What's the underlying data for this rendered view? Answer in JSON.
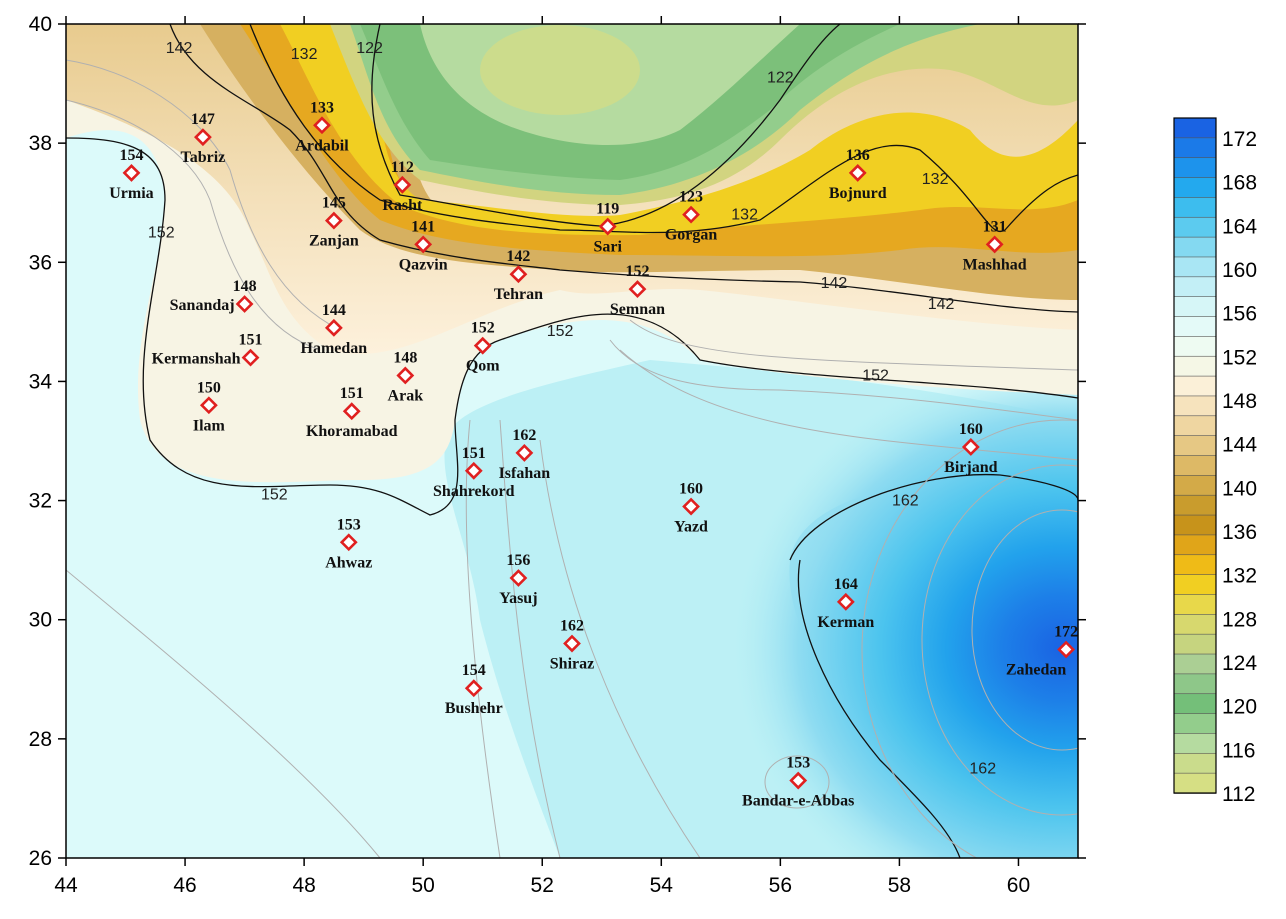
{
  "colors": {
    "bg_low": "#dcfafa",
    "cyan": "#b4eef4",
    "blue_mid": "#5ac8ec",
    "blue_deep": "#1f6fe6",
    "cream": "#fdf1dc",
    "tan": "#e8cb8e",
    "brown": "#c89a2c",
    "orange": "#e6a41a",
    "yellow": "#f0cc24",
    "olive": "#d2d480",
    "green_light": "#b6dca0",
    "green": "#7cc07a",
    "marker": "#e02020"
  },
  "x_axis": {
    "min": 44,
    "max": 61,
    "ticks": [
      "44",
      "46",
      "48",
      "50",
      "52",
      "54",
      "56",
      "58",
      "60"
    ]
  },
  "y_axis": {
    "min": 26,
    "max": 40,
    "ticks": [
      "26",
      "28",
      "30",
      "32",
      "34",
      "36",
      "38",
      "40"
    ]
  },
  "colorbar": {
    "labels": [
      "172",
      "168",
      "164",
      "160",
      "156",
      "152",
      "148",
      "144",
      "140",
      "136",
      "132",
      "128",
      "124",
      "120",
      "116",
      "112"
    ],
    "bands": [
      "#1a63e3",
      "#1b7ae8",
      "#1d93ec",
      "#23a9ee",
      "#3dbdee",
      "#5ccbef",
      "#84d9f1",
      "#a9e6f4",
      "#c3eff6",
      "#d6f6f7",
      "#e4faf8",
      "#eefbf2",
      "#f5f7e6",
      "#fbf0d8",
      "#f6e3bd",
      "#efd6a1",
      "#e6c884",
      "#ddb966",
      "#d3aa48",
      "#c99c2d",
      "#c7931b",
      "#e0a519",
      "#efbb17",
      "#f1cf22",
      "#e8d84a",
      "#d7d86e",
      "#c6d47f",
      "#abcf94",
      "#8ec789",
      "#74bf79",
      "#93cd8c",
      "#b5dba0",
      "#cadc8c",
      "#d6df84"
    ]
  },
  "cities": [
    {
      "name": "Urmia",
      "value": "154",
      "lon": 45.1,
      "lat": 37.5,
      "place": "below"
    },
    {
      "name": "Tabriz",
      "value": "147",
      "lon": 46.3,
      "lat": 38.1,
      "place": "below"
    },
    {
      "name": "Ardabil",
      "value": "133",
      "lon": 48.3,
      "lat": 38.3,
      "place": "below"
    },
    {
      "name": "Rasht",
      "value": "112",
      "lon": 49.65,
      "lat": 37.3,
      "place": "below"
    },
    {
      "name": "Zanjan",
      "value": "145",
      "lon": 48.5,
      "lat": 36.7,
      "place": "below"
    },
    {
      "name": "Qazvin",
      "value": "141",
      "lon": 50.0,
      "lat": 36.3,
      "place": "below"
    },
    {
      "name": "Sari",
      "value": "119",
      "lon": 53.1,
      "lat": 36.6,
      "place": "below"
    },
    {
      "name": "Gorgan",
      "value": "123",
      "lon": 54.5,
      "lat": 36.8,
      "place": "below"
    },
    {
      "name": "Bojnurd",
      "value": "136",
      "lon": 57.3,
      "lat": 37.5,
      "place": "below"
    },
    {
      "name": "Mashhad",
      "value": "131",
      "lon": 59.6,
      "lat": 36.3,
      "place": "below"
    },
    {
      "name": "Tehran",
      "value": "142",
      "lon": 51.6,
      "lat": 35.8,
      "place": "below"
    },
    {
      "name": "Semnan",
      "value": "152",
      "lon": 53.6,
      "lat": 35.55,
      "place": "below"
    },
    {
      "name": "Sanandaj",
      "value": "148",
      "lon": 47.0,
      "lat": 35.3,
      "place": "left"
    },
    {
      "name": "Hamedan",
      "value": "144",
      "lon": 48.5,
      "lat": 34.9,
      "place": "below"
    },
    {
      "name": "Kermanshah",
      "value": "151",
      "lon": 47.1,
      "lat": 34.4,
      "place": "left"
    },
    {
      "name": "Qom",
      "value": "152",
      "lon": 51.0,
      "lat": 34.6,
      "place": "below"
    },
    {
      "name": "Arak",
      "value": "148",
      "lon": 49.7,
      "lat": 34.1,
      "place": "below"
    },
    {
      "name": "Ilam",
      "value": "150",
      "lon": 46.4,
      "lat": 33.6,
      "place": "below"
    },
    {
      "name": "Khoramabad",
      "value": "151",
      "lon": 48.8,
      "lat": 33.5,
      "place": "below"
    },
    {
      "name": "Isfahan",
      "value": "162",
      "lon": 51.7,
      "lat": 32.8,
      "place": "below"
    },
    {
      "name": "Shahrekord",
      "value": "151",
      "lon": 50.85,
      "lat": 32.5,
      "place": "below"
    },
    {
      "name": "Birjand",
      "value": "160",
      "lon": 59.2,
      "lat": 32.9,
      "place": "below"
    },
    {
      "name": "Yazd",
      "value": "160",
      "lon": 54.5,
      "lat": 31.9,
      "place": "below"
    },
    {
      "name": "Ahwaz",
      "value": "153",
      "lon": 48.75,
      "lat": 31.3,
      "place": "below"
    },
    {
      "name": "Yasuj",
      "value": "156",
      "lon": 51.6,
      "lat": 30.7,
      "place": "below"
    },
    {
      "name": "Kerman",
      "value": "164",
      "lon": 57.1,
      "lat": 30.3,
      "place": "below"
    },
    {
      "name": "Shiraz",
      "value": "162",
      "lon": 52.5,
      "lat": 29.6,
      "place": "below"
    },
    {
      "name": "Zahedan",
      "value": "172",
      "lon": 60.8,
      "lat": 29.5,
      "place": "zahedan"
    },
    {
      "name": "Bushehr",
      "value": "154",
      "lon": 50.85,
      "lat": 28.85,
      "place": "below"
    },
    {
      "name": "Bandar-e-Abbas",
      "value": "153",
      "lon": 56.3,
      "lat": 27.3,
      "place": "below"
    }
  ],
  "contour_labels": [
    {
      "text": "142",
      "lon": 45.9,
      "lat": 39.6
    },
    {
      "text": "132",
      "lon": 48.0,
      "lat": 39.5
    },
    {
      "text": "122",
      "lon": 49.1,
      "lat": 39.6
    },
    {
      "text": "122",
      "lon": 56.0,
      "lat": 39.1
    },
    {
      "text": "132",
      "lon": 58.6,
      "lat": 37.4
    },
    {
      "text": "132",
      "lon": 55.4,
      "lat": 36.8
    },
    {
      "text": "142",
      "lon": 56.9,
      "lat": 35.65
    },
    {
      "text": "142",
      "lon": 58.7,
      "lat": 35.3
    },
    {
      "text": "152",
      "lon": 45.6,
      "lat": 36.5
    },
    {
      "text": "152",
      "lon": 52.3,
      "lat": 34.85
    },
    {
      "text": "152",
      "lon": 57.6,
      "lat": 34.1
    },
    {
      "text": "152",
      "lon": 47.5,
      "lat": 32.1
    },
    {
      "text": "162",
      "lon": 58.1,
      "lat": 32.0
    },
    {
      "text": "162",
      "lon": 59.4,
      "lat": 27.5
    }
  ]
}
